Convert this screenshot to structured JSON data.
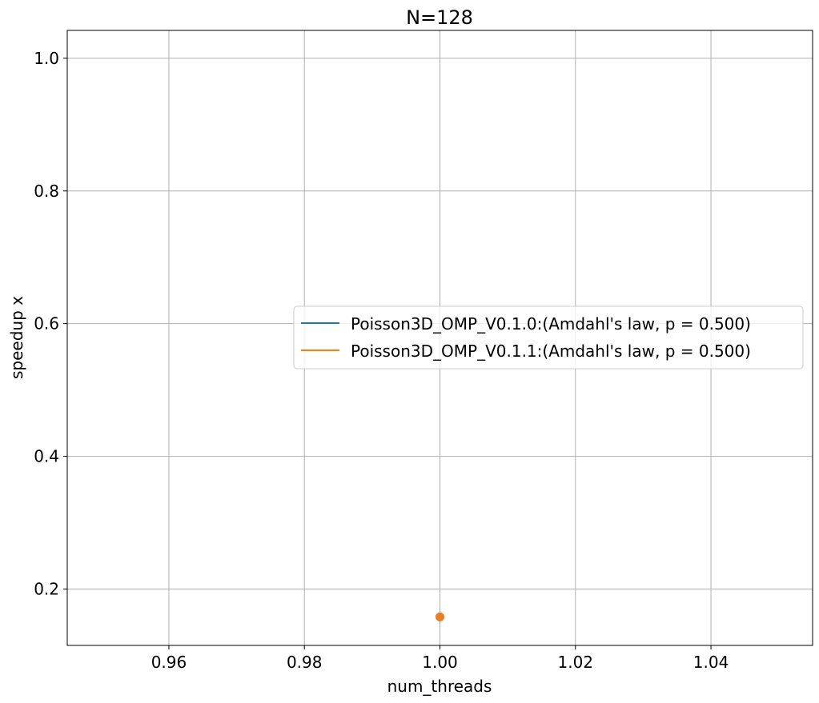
{
  "chart_data": {
    "type": "scatter",
    "title": "N=128",
    "xlabel": "num_threads",
    "ylabel": "speedup x",
    "xlim": [
      0.945,
      1.055
    ],
    "ylim": [
      0.115,
      1.042
    ],
    "xticks": [
      0.96,
      0.98,
      1.0,
      1.02,
      1.04
    ],
    "xtick_labels": [
      "0.96",
      "0.98",
      "1.00",
      "1.02",
      "1.04"
    ],
    "yticks": [
      0.2,
      0.4,
      0.6,
      0.8,
      1.0
    ],
    "ytick_labels": [
      "0.2",
      "0.4",
      "0.6",
      "0.8",
      "1.0"
    ],
    "grid": true,
    "legend_position": "center-right",
    "series": [
      {
        "name": "Poisson3D_OMP_V0.1.0:(Amdahl's law, p = 0.500)",
        "color": "#1f77b4",
        "x": [
          1.0
        ],
        "y": [
          0.158
        ]
      },
      {
        "name": "Poisson3D_OMP_V0.1.1:(Amdahl's law, p = 0.500)",
        "color": "#ff7f0e",
        "x": [
          1.0
        ],
        "y": [
          0.158
        ]
      }
    ]
  }
}
